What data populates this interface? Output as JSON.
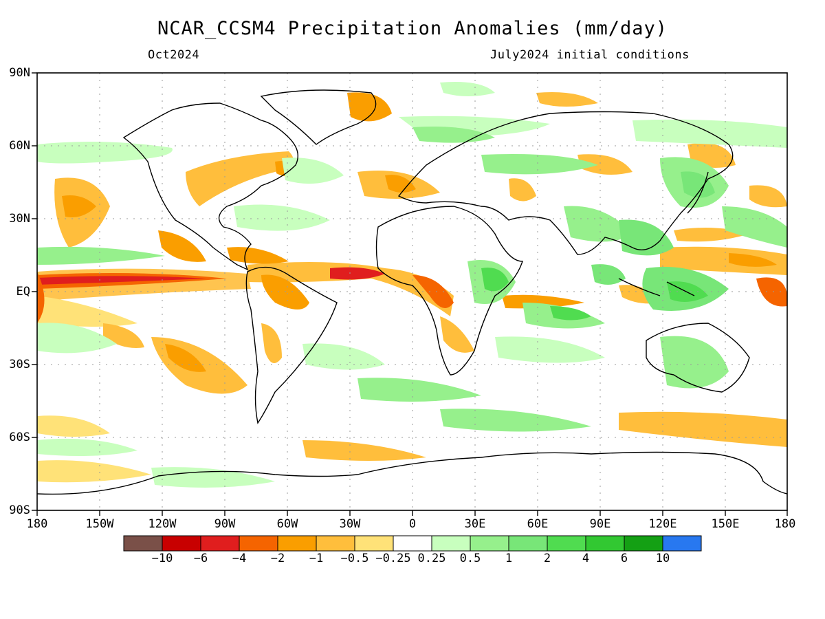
{
  "title": "NCAR_CCSM4 Precipitation Anomalies (mm/day)",
  "subtitle_left": "Oct2024",
  "subtitle_right": "July2024 initial conditions",
  "y_axis_ticks": [
    "90N",
    "60N",
    "30N",
    "EQ",
    "30S",
    "60S",
    "90S"
  ],
  "x_axis_ticks": [
    "180",
    "150W",
    "120W",
    "90W",
    "60W",
    "30W",
    "0",
    "30E",
    "60E",
    "90E",
    "120E",
    "150E",
    "180"
  ],
  "colorbar": {
    "colors": [
      "#7a5048",
      "#c80000",
      "#e01e1e",
      "#f56400",
      "#fa9e00",
      "#ffbe3c",
      "#ffe278",
      "#ffffff",
      "#c8ffbe",
      "#96f08c",
      "#78e678",
      "#50dc50",
      "#32c832",
      "#14a014",
      "#2878f0"
    ],
    "labels": [
      "-10",
      "-6",
      "-4",
      "-2",
      "-1",
      "-0.5",
      "-0.25",
      "0.25",
      "0.5",
      "1",
      "2",
      "4",
      "6",
      "10"
    ]
  }
}
